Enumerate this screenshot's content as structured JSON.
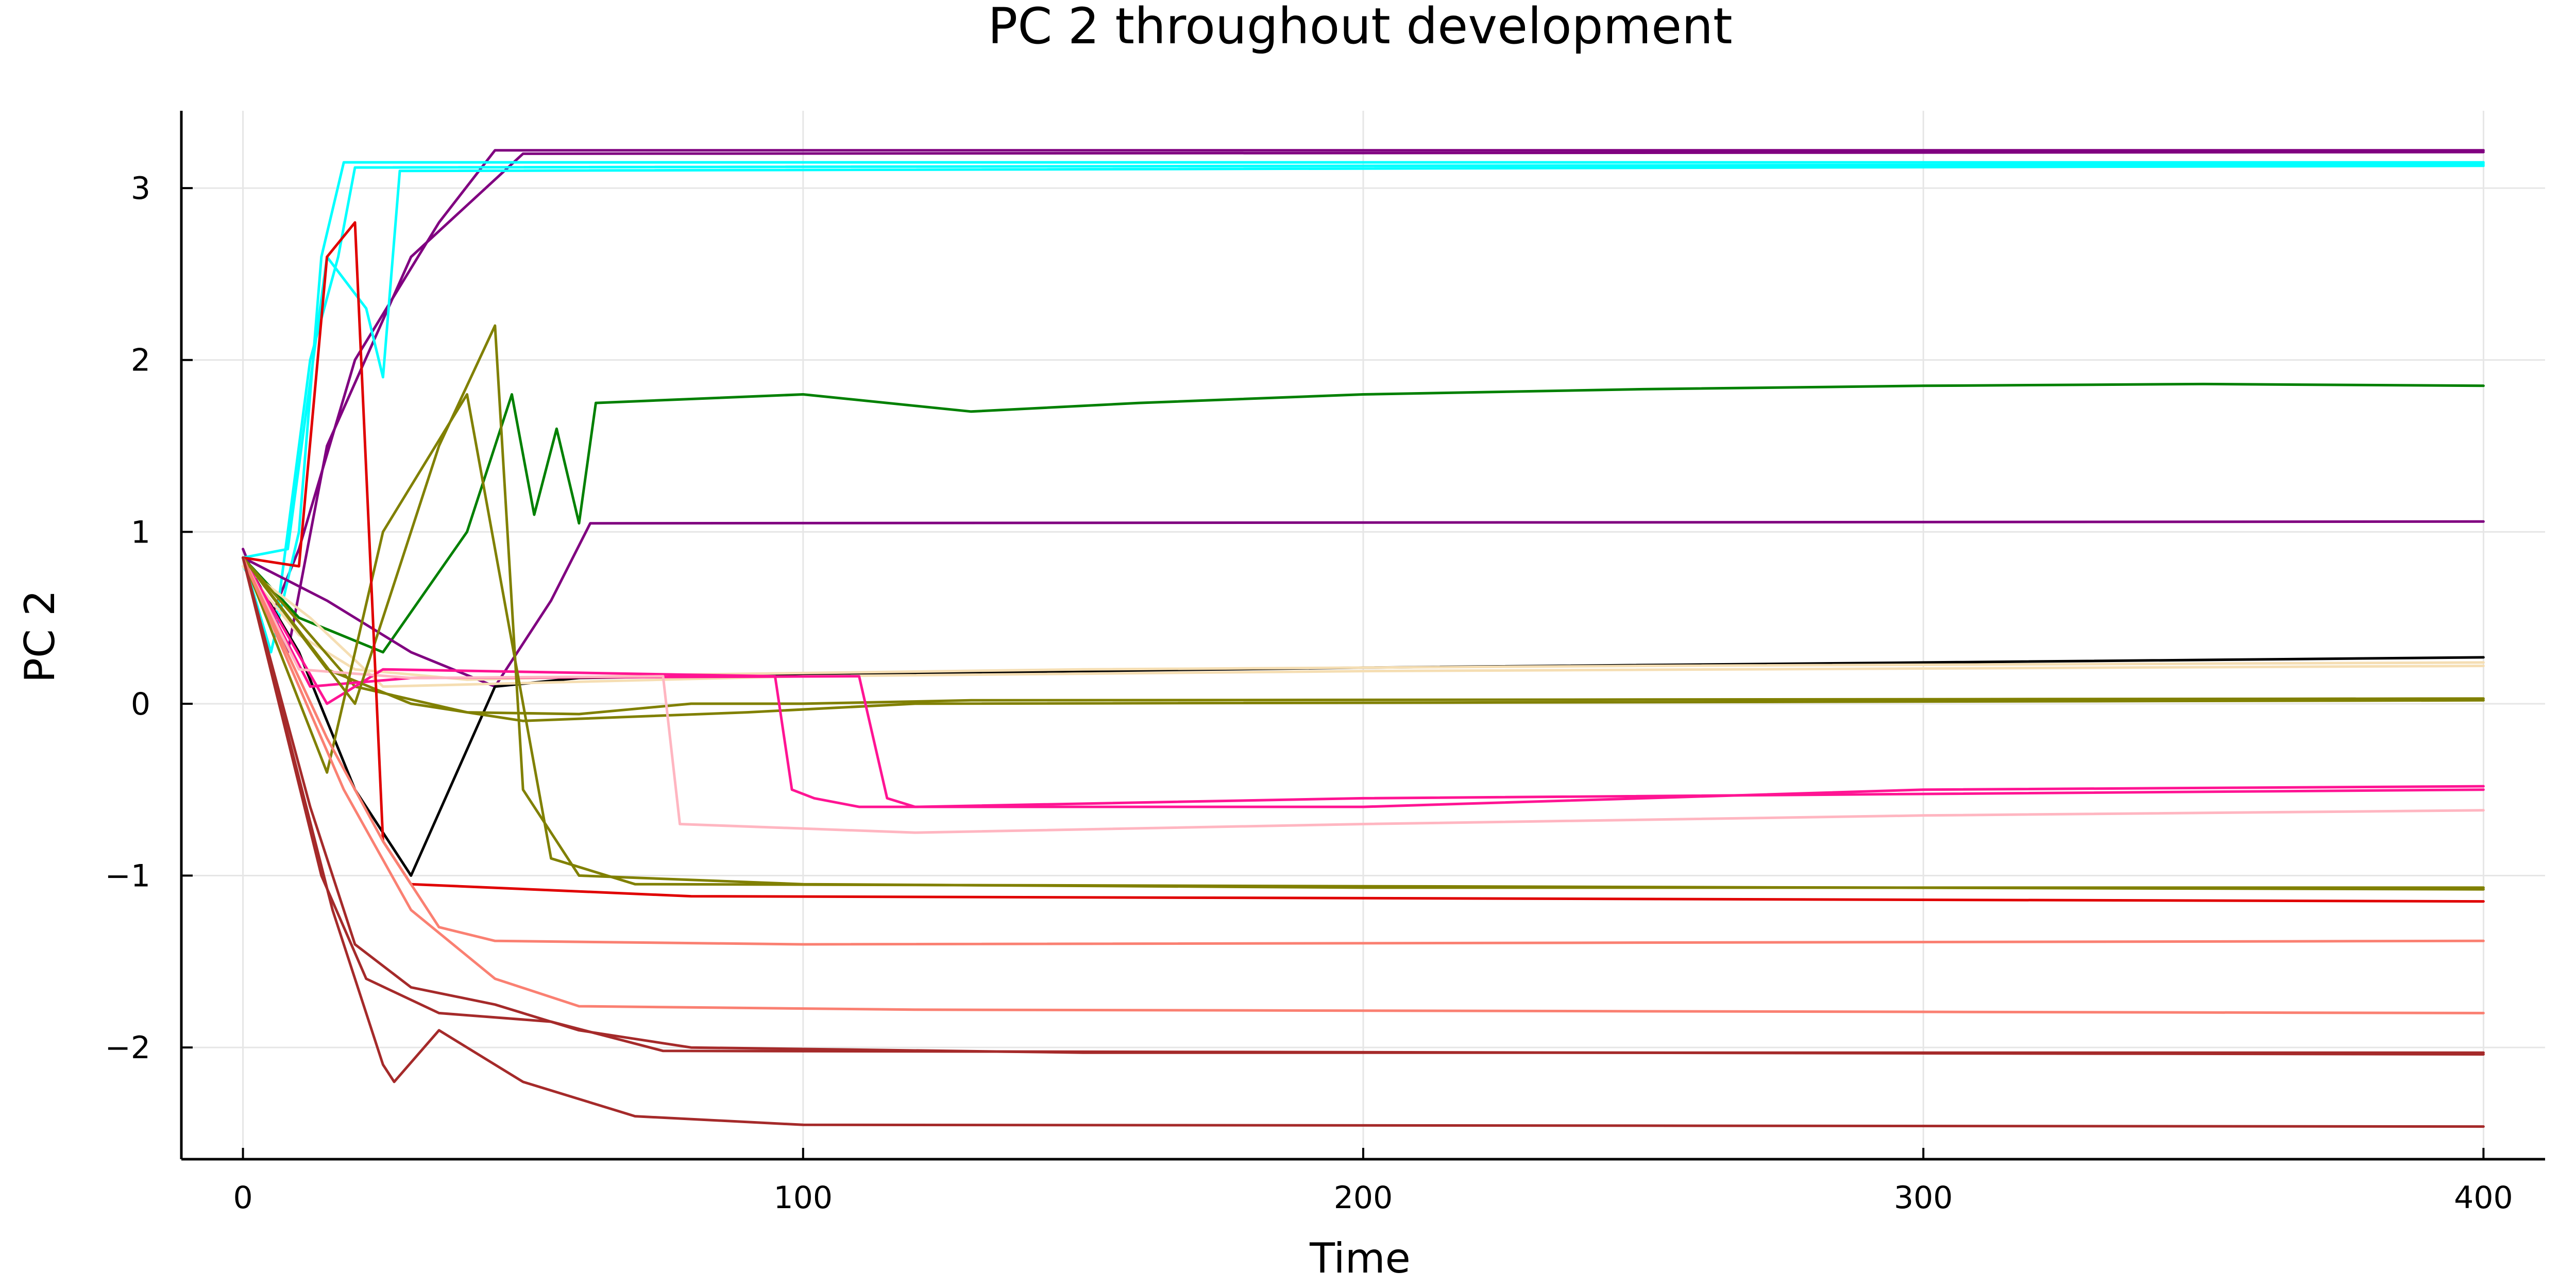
{
  "chart_data": {
    "type": "line",
    "title": "PC 2 throughout development",
    "xlabel": "Time",
    "ylabel": "PC 2",
    "xlim": [
      -11,
      411
    ],
    "ylim": [
      -2.65,
      3.45
    ],
    "xticks": [
      0,
      100,
      200,
      300,
      400
    ],
    "xtick_labels": [
      "0",
      "100",
      "200",
      "300",
      "400"
    ],
    "yticks": [
      -2,
      -1,
      0,
      1,
      2,
      3
    ],
    "ytick_labels": [
      "−2",
      "−1",
      "0",
      "1",
      "2",
      "3"
    ],
    "grid": true,
    "legend": "none",
    "colors": {
      "cyan": "#00ffff",
      "purple": "#800080",
      "green": "#008000",
      "black": "#000000",
      "wheat": "#f5deb3",
      "olive": "#808000",
      "deeppink": "#ff1493",
      "pink": "#ffb6c1",
      "red": "#e00000",
      "salmon": "#fa8072",
      "brown": "#a52a2a"
    },
    "series": [
      {
        "color": "#800080",
        "points": [
          [
            0,
            0.9
          ],
          [
            5,
            0.5
          ],
          [
            10,
            0.9
          ],
          [
            20,
            2.0
          ],
          [
            35,
            2.8
          ],
          [
            45,
            3.22
          ],
          [
            400,
            3.22
          ]
        ]
      },
      {
        "color": "#800080",
        "points": [
          [
            0,
            0.85
          ],
          [
            8,
            0.3
          ],
          [
            15,
            1.5
          ],
          [
            30,
            2.6
          ],
          [
            50,
            3.2
          ],
          [
            400,
            3.21
          ]
        ]
      },
      {
        "color": "#00ffff",
        "points": [
          [
            0,
            0.85
          ],
          [
            5,
            0.3
          ],
          [
            10,
            1.0
          ],
          [
            14,
            2.6
          ],
          [
            18,
            3.15
          ],
          [
            400,
            3.15
          ]
        ]
      },
      {
        "color": "#00ffff",
        "points": [
          [
            0,
            0.8
          ],
          [
            6,
            0.5
          ],
          [
            12,
            2.0
          ],
          [
            17,
            2.6
          ],
          [
            20,
            3.12
          ],
          [
            400,
            3.14
          ]
        ]
      },
      {
        "color": "#00ffff",
        "points": [
          [
            0,
            0.85
          ],
          [
            8,
            0.9
          ],
          [
            15,
            2.6
          ],
          [
            22,
            2.3
          ],
          [
            25,
            1.9
          ],
          [
            28,
            3.1
          ],
          [
            400,
            3.13
          ]
        ]
      },
      {
        "color": "#008000",
        "points": [
          [
            0,
            0.85
          ],
          [
            10,
            0.5
          ],
          [
            25,
            0.3
          ],
          [
            40,
            1.0
          ],
          [
            48,
            1.8
          ],
          [
            52,
            1.1
          ],
          [
            56,
            1.6
          ],
          [
            60,
            1.05
          ],
          [
            63,
            1.75
          ],
          [
            100,
            1.8
          ],
          [
            130,
            1.7
          ],
          [
            160,
            1.75
          ],
          [
            200,
            1.8
          ],
          [
            250,
            1.83
          ],
          [
            300,
            1.85
          ],
          [
            350,
            1.86
          ],
          [
            400,
            1.85
          ]
        ]
      },
      {
        "color": "#800080",
        "points": [
          [
            0,
            0.85
          ],
          [
            15,
            0.6
          ],
          [
            30,
            0.3
          ],
          [
            45,
            0.1
          ],
          [
            55,
            0.6
          ],
          [
            62,
            1.05
          ],
          [
            400,
            1.06
          ]
        ]
      },
      {
        "color": "#000000",
        "points": [
          [
            0,
            0.85
          ],
          [
            10,
            0.3
          ],
          [
            20,
            -0.5
          ],
          [
            30,
            -1.0
          ],
          [
            45,
            0.1
          ],
          [
            60,
            0.15
          ],
          [
            100,
            0.17
          ],
          [
            200,
            0.21
          ],
          [
            300,
            0.24
          ],
          [
            400,
            0.27
          ]
        ]
      },
      {
        "color": "#f5deb3",
        "points": [
          [
            0,
            0.8
          ],
          [
            10,
            0.4
          ],
          [
            20,
            0.2
          ],
          [
            40,
            0.14
          ],
          [
            80,
            0.17
          ],
          [
            150,
            0.2
          ],
          [
            250,
            0.22
          ],
          [
            400,
            0.24
          ]
        ]
      },
      {
        "color": "#f5deb3",
        "points": [
          [
            0,
            0.8
          ],
          [
            12,
            0.5
          ],
          [
            25,
            0.1
          ],
          [
            50,
            0.12
          ],
          [
            100,
            0.16
          ],
          [
            200,
            0.19
          ],
          [
            400,
            0.22
          ]
        ]
      },
      {
        "color": "#808000",
        "points": [
          [
            0,
            0.85
          ],
          [
            20,
            0.1
          ],
          [
            40,
            -0.05
          ],
          [
            60,
            -0.06
          ],
          [
            80,
            0.0
          ],
          [
            100,
            0.0
          ],
          [
            130,
            0.02
          ],
          [
            400,
            0.03
          ]
        ]
      },
      {
        "color": "#808000",
        "points": [
          [
            0,
            0.85
          ],
          [
            15,
            0.2
          ],
          [
            30,
            0.0
          ],
          [
            50,
            -0.1
          ],
          [
            90,
            -0.05
          ],
          [
            120,
            0.0
          ],
          [
            400,
            0.02
          ]
        ]
      },
      {
        "color": "#ff1493",
        "points": [
          [
            0,
            0.85
          ],
          [
            15,
            0.0
          ],
          [
            25,
            0.2
          ],
          [
            60,
            0.18
          ],
          [
            95,
            0.16
          ],
          [
            98,
            -0.5
          ],
          [
            102,
            -0.55
          ],
          [
            110,
            -0.6
          ],
          [
            150,
            -0.6
          ],
          [
            200,
            -0.6
          ],
          [
            300,
            -0.5
          ],
          [
            400,
            -0.48
          ]
        ]
      },
      {
        "color": "#ff1493",
        "points": [
          [
            0,
            0.85
          ],
          [
            12,
            0.1
          ],
          [
            30,
            0.15
          ],
          [
            110,
            0.16
          ],
          [
            115,
            -0.55
          ],
          [
            120,
            -0.6
          ],
          [
            200,
            -0.55
          ],
          [
            400,
            -0.5
          ]
        ]
      },
      {
        "color": "#ffb6c1",
        "points": [
          [
            0,
            0.85
          ],
          [
            10,
            0.2
          ],
          [
            30,
            0.15
          ],
          [
            75,
            0.16
          ],
          [
            78,
            -0.7
          ],
          [
            120,
            -0.75
          ],
          [
            200,
            -0.7
          ],
          [
            300,
            -0.65
          ],
          [
            400,
            -0.62
          ]
        ]
      },
      {
        "color": "#808000",
        "points": [
          [
            0,
            0.85
          ],
          [
            20,
            0.0
          ],
          [
            35,
            1.5
          ],
          [
            45,
            2.2
          ],
          [
            50,
            -0.5
          ],
          [
            60,
            -1.0
          ],
          [
            100,
            -1.05
          ],
          [
            200,
            -1.07
          ],
          [
            400,
            -1.07
          ]
        ]
      },
      {
        "color": "#808000",
        "points": [
          [
            0,
            0.85
          ],
          [
            15,
            -0.4
          ],
          [
            25,
            1.0
          ],
          [
            40,
            1.8
          ],
          [
            55,
            -0.9
          ],
          [
            70,
            -1.05
          ],
          [
            400,
            -1.08
          ]
        ]
      },
      {
        "color": "#e00000",
        "points": [
          [
            0,
            0.85
          ],
          [
            10,
            0.8
          ],
          [
            15,
            2.6
          ],
          [
            20,
            2.8
          ],
          [
            25,
            -0.8
          ],
          [
            30,
            -1.05
          ],
          [
            80,
            -1.12
          ],
          [
            400,
            -1.15
          ]
        ]
      },
      {
        "color": "#fa8072",
        "points": [
          [
            0,
            0.85
          ],
          [
            15,
            -0.2
          ],
          [
            25,
            -0.8
          ],
          [
            35,
            -1.3
          ],
          [
            45,
            -1.38
          ],
          [
            100,
            -1.4
          ],
          [
            400,
            -1.38
          ]
        ]
      },
      {
        "color": "#fa8072",
        "points": [
          [
            0,
            0.85
          ],
          [
            18,
            -0.5
          ],
          [
            30,
            -1.2
          ],
          [
            45,
            -1.6
          ],
          [
            60,
            -1.76
          ],
          [
            120,
            -1.78
          ],
          [
            400,
            -1.8
          ]
        ]
      },
      {
        "color": "#a52a2a",
        "points": [
          [
            0,
            0.85
          ],
          [
            12,
            -0.6
          ],
          [
            20,
            -1.4
          ],
          [
            30,
            -1.65
          ],
          [
            45,
            -1.75
          ],
          [
            60,
            -1.9
          ],
          [
            80,
            -2.0
          ],
          [
            150,
            -2.03
          ],
          [
            400,
            -2.03
          ]
        ]
      },
      {
        "color": "#a52a2a",
        "points": [
          [
            0,
            0.85
          ],
          [
            14,
            -1.0
          ],
          [
            22,
            -1.6
          ],
          [
            35,
            -1.8
          ],
          [
            55,
            -1.85
          ],
          [
            75,
            -2.02
          ],
          [
            400,
            -2.04
          ]
        ]
      },
      {
        "color": "#a52a2a",
        "points": [
          [
            0,
            0.85
          ],
          [
            16,
            -1.2
          ],
          [
            25,
            -2.1
          ],
          [
            27,
            -2.2
          ],
          [
            35,
            -1.9
          ],
          [
            50,
            -2.2
          ],
          [
            70,
            -2.4
          ],
          [
            100,
            -2.45
          ],
          [
            400,
            -2.46
          ]
        ]
      }
    ]
  }
}
